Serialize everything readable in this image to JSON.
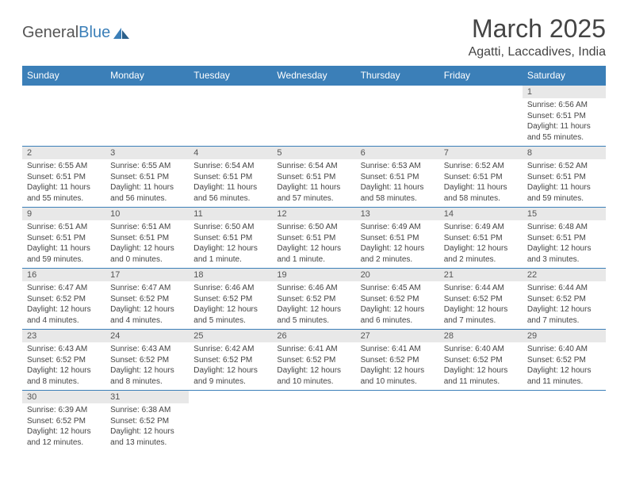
{
  "logo": {
    "part1": "General",
    "part2": "Blue"
  },
  "title": "March 2025",
  "location": "Agatti, Laccadives, India",
  "weekdays": [
    "Sunday",
    "Monday",
    "Tuesday",
    "Wednesday",
    "Thursday",
    "Friday",
    "Saturday"
  ],
  "colors": {
    "header_bg": "#3b7fb8",
    "daynum_bg": "#e8e8e8",
    "border": "#3b7fb8"
  },
  "weeks": [
    [
      null,
      null,
      null,
      null,
      null,
      null,
      {
        "n": "1",
        "sr": "Sunrise: 6:56 AM",
        "ss": "Sunset: 6:51 PM",
        "dl": "Daylight: 11 hours and 55 minutes."
      }
    ],
    [
      {
        "n": "2",
        "sr": "Sunrise: 6:55 AM",
        "ss": "Sunset: 6:51 PM",
        "dl": "Daylight: 11 hours and 55 minutes."
      },
      {
        "n": "3",
        "sr": "Sunrise: 6:55 AM",
        "ss": "Sunset: 6:51 PM",
        "dl": "Daylight: 11 hours and 56 minutes."
      },
      {
        "n": "4",
        "sr": "Sunrise: 6:54 AM",
        "ss": "Sunset: 6:51 PM",
        "dl": "Daylight: 11 hours and 56 minutes."
      },
      {
        "n": "5",
        "sr": "Sunrise: 6:54 AM",
        "ss": "Sunset: 6:51 PM",
        "dl": "Daylight: 11 hours and 57 minutes."
      },
      {
        "n": "6",
        "sr": "Sunrise: 6:53 AM",
        "ss": "Sunset: 6:51 PM",
        "dl": "Daylight: 11 hours and 58 minutes."
      },
      {
        "n": "7",
        "sr": "Sunrise: 6:52 AM",
        "ss": "Sunset: 6:51 PM",
        "dl": "Daylight: 11 hours and 58 minutes."
      },
      {
        "n": "8",
        "sr": "Sunrise: 6:52 AM",
        "ss": "Sunset: 6:51 PM",
        "dl": "Daylight: 11 hours and 59 minutes."
      }
    ],
    [
      {
        "n": "9",
        "sr": "Sunrise: 6:51 AM",
        "ss": "Sunset: 6:51 PM",
        "dl": "Daylight: 11 hours and 59 minutes."
      },
      {
        "n": "10",
        "sr": "Sunrise: 6:51 AM",
        "ss": "Sunset: 6:51 PM",
        "dl": "Daylight: 12 hours and 0 minutes."
      },
      {
        "n": "11",
        "sr": "Sunrise: 6:50 AM",
        "ss": "Sunset: 6:51 PM",
        "dl": "Daylight: 12 hours and 1 minute."
      },
      {
        "n": "12",
        "sr": "Sunrise: 6:50 AM",
        "ss": "Sunset: 6:51 PM",
        "dl": "Daylight: 12 hours and 1 minute."
      },
      {
        "n": "13",
        "sr": "Sunrise: 6:49 AM",
        "ss": "Sunset: 6:51 PM",
        "dl": "Daylight: 12 hours and 2 minutes."
      },
      {
        "n": "14",
        "sr": "Sunrise: 6:49 AM",
        "ss": "Sunset: 6:51 PM",
        "dl": "Daylight: 12 hours and 2 minutes."
      },
      {
        "n": "15",
        "sr": "Sunrise: 6:48 AM",
        "ss": "Sunset: 6:51 PM",
        "dl": "Daylight: 12 hours and 3 minutes."
      }
    ],
    [
      {
        "n": "16",
        "sr": "Sunrise: 6:47 AM",
        "ss": "Sunset: 6:52 PM",
        "dl": "Daylight: 12 hours and 4 minutes."
      },
      {
        "n": "17",
        "sr": "Sunrise: 6:47 AM",
        "ss": "Sunset: 6:52 PM",
        "dl": "Daylight: 12 hours and 4 minutes."
      },
      {
        "n": "18",
        "sr": "Sunrise: 6:46 AM",
        "ss": "Sunset: 6:52 PM",
        "dl": "Daylight: 12 hours and 5 minutes."
      },
      {
        "n": "19",
        "sr": "Sunrise: 6:46 AM",
        "ss": "Sunset: 6:52 PM",
        "dl": "Daylight: 12 hours and 5 minutes."
      },
      {
        "n": "20",
        "sr": "Sunrise: 6:45 AM",
        "ss": "Sunset: 6:52 PM",
        "dl": "Daylight: 12 hours and 6 minutes."
      },
      {
        "n": "21",
        "sr": "Sunrise: 6:44 AM",
        "ss": "Sunset: 6:52 PM",
        "dl": "Daylight: 12 hours and 7 minutes."
      },
      {
        "n": "22",
        "sr": "Sunrise: 6:44 AM",
        "ss": "Sunset: 6:52 PM",
        "dl": "Daylight: 12 hours and 7 minutes."
      }
    ],
    [
      {
        "n": "23",
        "sr": "Sunrise: 6:43 AM",
        "ss": "Sunset: 6:52 PM",
        "dl": "Daylight: 12 hours and 8 minutes."
      },
      {
        "n": "24",
        "sr": "Sunrise: 6:43 AM",
        "ss": "Sunset: 6:52 PM",
        "dl": "Daylight: 12 hours and 8 minutes."
      },
      {
        "n": "25",
        "sr": "Sunrise: 6:42 AM",
        "ss": "Sunset: 6:52 PM",
        "dl": "Daylight: 12 hours and 9 minutes."
      },
      {
        "n": "26",
        "sr": "Sunrise: 6:41 AM",
        "ss": "Sunset: 6:52 PM",
        "dl": "Daylight: 12 hours and 10 minutes."
      },
      {
        "n": "27",
        "sr": "Sunrise: 6:41 AM",
        "ss": "Sunset: 6:52 PM",
        "dl": "Daylight: 12 hours and 10 minutes."
      },
      {
        "n": "28",
        "sr": "Sunrise: 6:40 AM",
        "ss": "Sunset: 6:52 PM",
        "dl": "Daylight: 12 hours and 11 minutes."
      },
      {
        "n": "29",
        "sr": "Sunrise: 6:40 AM",
        "ss": "Sunset: 6:52 PM",
        "dl": "Daylight: 12 hours and 11 minutes."
      }
    ],
    [
      {
        "n": "30",
        "sr": "Sunrise: 6:39 AM",
        "ss": "Sunset: 6:52 PM",
        "dl": "Daylight: 12 hours and 12 minutes."
      },
      {
        "n": "31",
        "sr": "Sunrise: 6:38 AM",
        "ss": "Sunset: 6:52 PM",
        "dl": "Daylight: 12 hours and 13 minutes."
      },
      null,
      null,
      null,
      null,
      null
    ]
  ]
}
